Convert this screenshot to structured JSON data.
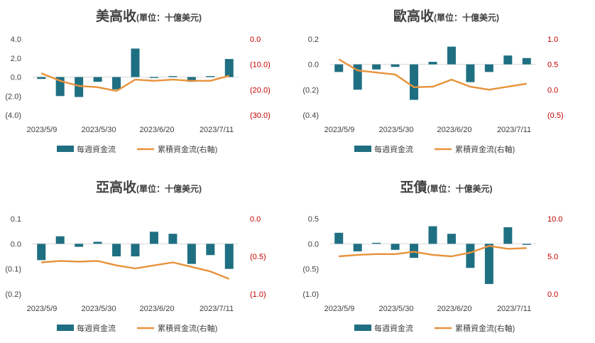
{
  "colors": {
    "bar": "#1f6f82",
    "line": "#e8923a",
    "right_axis_text": "#c00000"
  },
  "legend": {
    "bar": "每週資金流",
    "line": "累積資金流(右軸)"
  },
  "chart_data": [
    {
      "type": "bar",
      "title": "美高收",
      "subtitle": "(單位：十億美元)",
      "left_axis": {
        "ticks": [
          "4.0",
          "2.0",
          "0.0",
          "(2.0)",
          "(4.0)"
        ],
        "range": [
          -4,
          4
        ]
      },
      "right_axis": {
        "ticks": [
          "0.0",
          "(10.0)",
          "(20.0)",
          "(30.0)"
        ],
        "range": [
          -30,
          0
        ]
      },
      "x_ticks": [
        "2023/5/9",
        "2023/5/30",
        "2023/6/20",
        "2023/7/11"
      ],
      "series": [
        {
          "name": "每週資金流",
          "type": "bar",
          "values": [
            -0.2,
            -2.0,
            -2.1,
            -0.5,
            -1.3,
            3.0,
            -0.1,
            0.1,
            -0.5,
            0.1,
            1.9
          ]
        },
        {
          "name": "累積資金流(右軸)",
          "type": "line",
          "axis": "right",
          "values": [
            -13.5,
            -16.5,
            -18.5,
            -19,
            -20.5,
            -16,
            -16.5,
            -16,
            -16.5,
            -16.5,
            -14.5
          ]
        }
      ]
    },
    {
      "type": "bar",
      "title": "歐高收",
      "subtitle": "(單位：十億美元)",
      "left_axis": {
        "ticks": [
          "0.2",
          "0.0",
          "(0.2)",
          "(0.4)"
        ],
        "range": [
          -0.4,
          0.2
        ]
      },
      "right_axis": {
        "ticks": [
          "1.0",
          "0.5",
          "0.0",
          "(0.5)"
        ],
        "range": [
          -0.5,
          1.0
        ]
      },
      "x_ticks": [
        "2023/5/9",
        "2023/5/30",
        "2023/6/20",
        "2023/7/11"
      ],
      "series": [
        {
          "name": "每週資金流",
          "type": "bar",
          "values": [
            -0.06,
            -0.2,
            -0.04,
            -0.02,
            -0.28,
            0.02,
            0.14,
            -0.14,
            -0.06,
            0.07,
            0.05
          ]
        },
        {
          "name": "累積資金流(右軸)",
          "type": "line",
          "axis": "right",
          "values": [
            0.6,
            0.38,
            0.34,
            0.3,
            0.05,
            0.06,
            0.2,
            0.06,
            0.0,
            0.06,
            0.12
          ]
        }
      ]
    },
    {
      "type": "bar",
      "title": "亞高收",
      "subtitle": "(單位：十億美元)",
      "left_axis": {
        "ticks": [
          "0.1",
          "0.0",
          "(0.1)",
          "(0.2)"
        ],
        "range": [
          -0.2,
          0.1
        ]
      },
      "right_axis": {
        "ticks": [
          "0.0",
          "(0.5)",
          "(1.0)"
        ],
        "range": [
          -1.0,
          0.0
        ]
      },
      "x_ticks": [
        "2023/5/9",
        "2023/5/30",
        "2023/6/20",
        "2023/7/11"
      ],
      "series": [
        {
          "name": "每週資金流",
          "type": "bar",
          "values": [
            -0.065,
            0.03,
            -0.012,
            0.008,
            -0.05,
            -0.05,
            0.048,
            0.04,
            -0.08,
            -0.045,
            -0.1
          ]
        },
        {
          "name": "累積資金流(右軸)",
          "type": "line",
          "axis": "right",
          "values": [
            -0.58,
            -0.56,
            -0.57,
            -0.56,
            -0.62,
            -0.66,
            -0.62,
            -0.58,
            -0.64,
            -0.7,
            -0.8
          ]
        }
      ]
    },
    {
      "type": "bar",
      "title": "亞債",
      "subtitle": "(單位：十億美元)",
      "left_axis": {
        "ticks": [
          "0.5",
          "0.0",
          "(0.5)",
          "(1.0)"
        ],
        "range": [
          -1.0,
          0.5
        ]
      },
      "right_axis": {
        "ticks": [
          "0.0",
          "5.0",
          "10.0"
        ],
        "range": [
          0.0,
          10.0
        ]
      },
      "x_ticks": [
        "2023/5/9",
        "2023/5/30",
        "2023/6/20",
        "2023/7/11"
      ],
      "series": [
        {
          "name": "每週資金流",
          "type": "bar",
          "values": [
            0.22,
            -0.15,
            0.02,
            -0.12,
            -0.28,
            0.35,
            0.2,
            -0.48,
            -0.8,
            0.33,
            -0.02
          ]
        },
        {
          "name": "累積資金流(右軸)",
          "type": "line",
          "axis": "right",
          "values": [
            5.0,
            5.2,
            5.3,
            5.3,
            5.6,
            5.2,
            5.0,
            5.5,
            6.4,
            6.0,
            6.1
          ]
        }
      ]
    }
  ]
}
